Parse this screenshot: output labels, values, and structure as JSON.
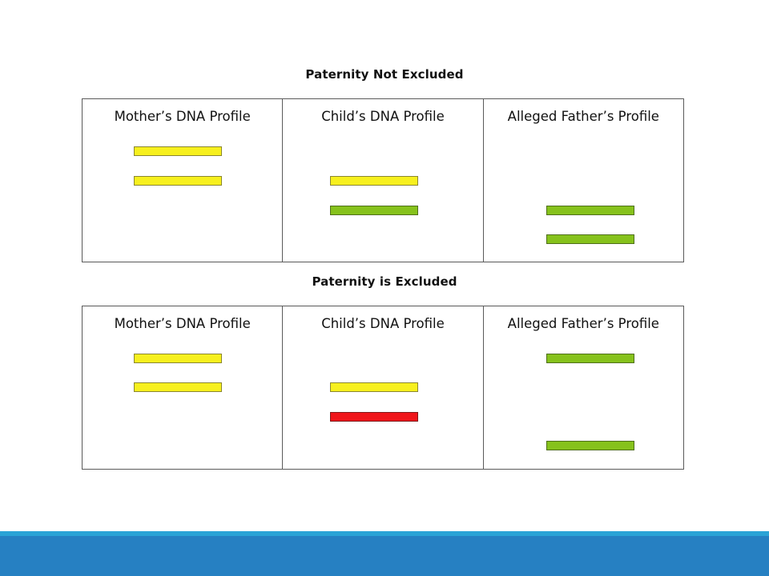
{
  "diagram": {
    "sections": [
      {
        "title": "Paternity Not Excluded",
        "columns": [
          {
            "label": "Mother’s DNA Profile",
            "bands": [
              "yellow",
              "yellow"
            ]
          },
          {
            "label": "Child’s DNA Profile",
            "bands": [
              "yellow",
              "green"
            ]
          },
          {
            "label": "Alleged Father’s Profile",
            "bands": [
              "green",
              "green"
            ]
          }
        ]
      },
      {
        "title": "Paternity is Excluded",
        "columns": [
          {
            "label": "Mother’s DNA Profile",
            "bands": [
              "yellow",
              "yellow"
            ]
          },
          {
            "label": "Child’s DNA Profile",
            "bands": [
              "yellow",
              "red"
            ]
          },
          {
            "label": "Alleged Father’s Profile",
            "bands": [
              "green",
              "green"
            ]
          }
        ]
      }
    ],
    "colors": {
      "yellow": "#f7f01e",
      "green": "#86c21c",
      "red": "#f0161b",
      "footer": "#2680c2",
      "footer_accent": "#2aa3d6"
    }
  }
}
